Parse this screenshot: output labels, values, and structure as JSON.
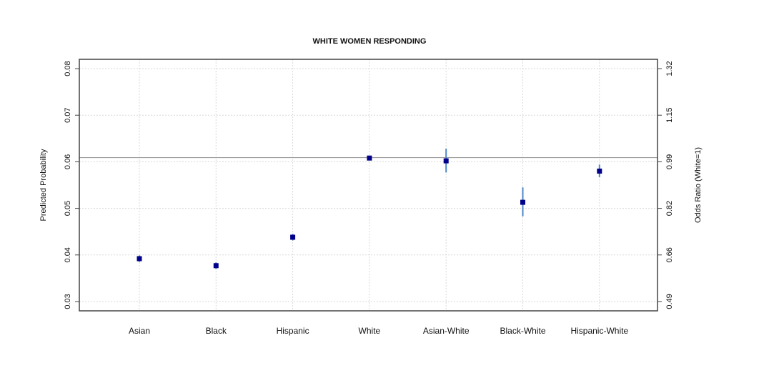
{
  "chart_data": {
    "type": "scatter",
    "title": "WHITE WOMEN RESPONDING",
    "ylabel": "Predicted Probability",
    "y2label": "Odds Ratio (White=1)",
    "categories": [
      "Asian",
      "Black",
      "Hispanic",
      "White",
      "Asian-White",
      "Black-White",
      "Hispanic-White"
    ],
    "values": [
      0.0392,
      0.0377,
      0.0438,
      0.0608,
      0.0602,
      0.0513,
      0.058
    ],
    "lower": [
      0.0385,
      0.037,
      0.0431,
      0.0605,
      0.0577,
      0.0483,
      0.0567
    ],
    "upper": [
      0.0399,
      0.0384,
      0.0445,
      0.0611,
      0.0628,
      0.0545,
      0.0594
    ],
    "reference_line": 0.0609,
    "ylim": [
      0.028,
      0.082
    ],
    "yticks": [
      "0.03",
      "0.04",
      "0.05",
      "0.06",
      "0.07",
      "0.08"
    ],
    "y2ticks": [
      "0.49",
      "0.66",
      "0.82",
      "0.99",
      "1.15",
      "1.32"
    ],
    "grid": true,
    "colors": {
      "point": "#00008b",
      "errorbar": "#4f86c6",
      "reference": "#999999",
      "grid": "#d8d8d8"
    }
  }
}
